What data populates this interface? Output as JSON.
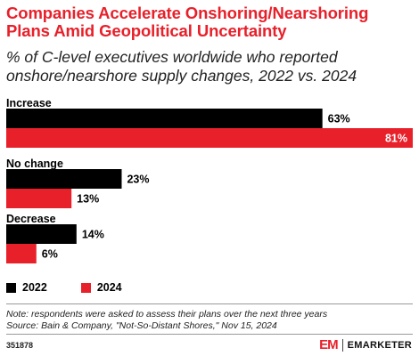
{
  "title": "Companies Accelerate Onshoring/Nearshoring Plans Amid Geopolitical Uncertainty",
  "subtitle": "% of C-level executives worldwide who reported onshore/nearshore supply changes, 2022 vs. 2024",
  "chart_data": {
    "type": "bar",
    "orientation": "horizontal",
    "categories": [
      "Increase",
      "No change",
      "Decrease"
    ],
    "series": [
      {
        "name": "2022",
        "values": [
          63,
          23,
          14
        ],
        "labels": [
          "63%",
          "23%",
          "14%"
        ],
        "color": "#000000"
      },
      {
        "name": "2024",
        "values": [
          81,
          13,
          6
        ],
        "labels": [
          "81%",
          "13%",
          "6%"
        ],
        "color": "#e8202a"
      }
    ],
    "xlim": [
      0,
      81
    ],
    "grid": false,
    "legend_position": "bottom-left"
  },
  "note": "Note: respondents were asked to assess their plans over the next three years",
  "source": "Source: Bain & Company, \"Not-So-Distant Shores,\" Nov 15, 2024",
  "chart_id": "351878",
  "brand": {
    "mark": "EM",
    "name": "EMARKETER",
    "color": "#e8202a"
  }
}
